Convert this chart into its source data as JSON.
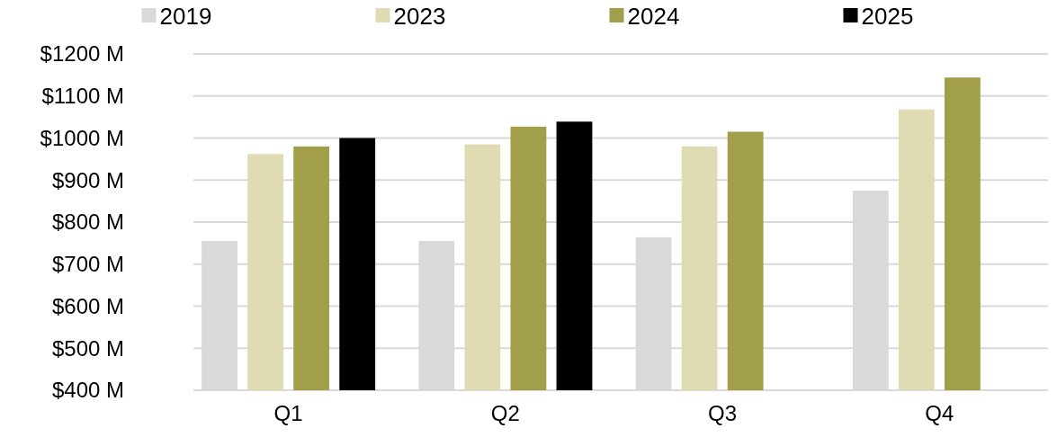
{
  "chart_data": {
    "type": "bar",
    "categories": [
      "Q1",
      "Q2",
      "Q3",
      "Q4"
    ],
    "series": [
      {
        "name": "2019",
        "color": "#d9d9d9",
        "values": [
          755,
          755,
          764,
          875
        ]
      },
      {
        "name": "2023",
        "color": "#dfdcb3",
        "values": [
          962,
          985,
          980,
          1068
        ]
      },
      {
        "name": "2024",
        "color": "#a19f4a",
        "values": [
          980,
          1027,
          1015,
          1144
        ]
      },
      {
        "name": "2025",
        "color": "#000000",
        "values": [
          1000,
          1039,
          null,
          null
        ]
      }
    ],
    "ylim": [
      400,
      1200
    ],
    "yticks": [
      {
        "value": 400,
        "label": "$400 M"
      },
      {
        "value": 500,
        "label": "$500 M"
      },
      {
        "value": 600,
        "label": "$600 M"
      },
      {
        "value": 700,
        "label": "$700 M"
      },
      {
        "value": 800,
        "label": "$800 M"
      },
      {
        "value": 900,
        "label": "$900 M"
      },
      {
        "value": 1000,
        "label": "$1000 M"
      },
      {
        "value": 1100,
        "label": "$1100 M"
      },
      {
        "value": 1200,
        "label": "$1200 M"
      }
    ],
    "grid": "y",
    "legend": "top"
  }
}
